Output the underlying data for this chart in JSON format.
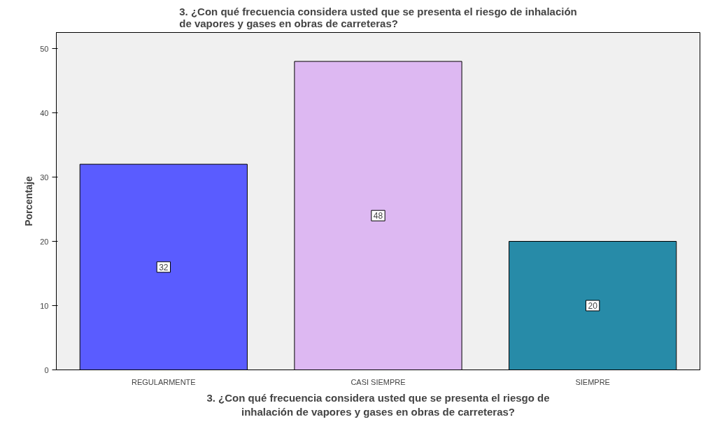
{
  "chart_data": {
    "type": "bar",
    "title": "3. ¿Con qué frecuencia considera usted que se presenta el riesgo de inhalación\nde vapores y gases en obras de carreteras?",
    "xlabel": "3. ¿Con qué frecuencia considera usted que se presenta el riesgo de\ninhalación de vapores y gases en obras de carreteras?",
    "ylabel": "Porcentaje",
    "categories": [
      "REGULARMENTE",
      "CASI SIEMPRE",
      "SIEMPRE"
    ],
    "values": [
      32,
      48,
      20
    ],
    "colors": [
      "#5a5cff",
      "#ddb8f2",
      "#278ba8"
    ],
    "ylim": [
      0,
      52.5
    ],
    "yticks": [
      0,
      10,
      20,
      30,
      40,
      50
    ],
    "data_labels": true,
    "grid": false
  }
}
